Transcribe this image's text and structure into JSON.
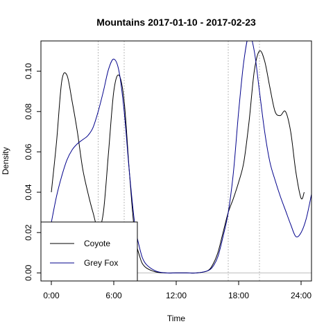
{
  "chart_data": {
    "type": "line",
    "title": "Mountains 2017-01-10 - 2017-02-23",
    "xlabel": "Time",
    "ylabel": "Density",
    "xlim": [
      -1,
      25
    ],
    "ylim": [
      -0.004,
      0.115
    ],
    "x_ticks": [
      {
        "value": 0,
        "label": "0:00"
      },
      {
        "value": 6,
        "label": "6:00"
      },
      {
        "value": 12,
        "label": "12:00"
      },
      {
        "value": 18,
        "label": "18:00"
      },
      {
        "value": 24,
        "label": "24:00"
      }
    ],
    "y_ticks": [
      {
        "value": 0,
        "label": "0.00"
      },
      {
        "value": 0.02,
        "label": "0.02"
      },
      {
        "value": 0.04,
        "label": "0.04"
      },
      {
        "value": 0.06,
        "label": "0.06"
      },
      {
        "value": 0.08,
        "label": "0.08"
      },
      {
        "value": 0.1,
        "label": "0.10"
      }
    ],
    "vertical_reference_lines": [
      4.5,
      7,
      17,
      20
    ],
    "legend": {
      "position": "bottom-left",
      "entries": [
        {
          "label": "Coyote",
          "color": "#000000"
        },
        {
          "label": "Grey Fox",
          "color": "#00008B"
        }
      ]
    },
    "series": [
      {
        "name": "Coyote",
        "color": "#000000",
        "points": [
          [
            0,
            0.04
          ],
          [
            0.5,
            0.065
          ],
          [
            1.0,
            0.095
          ],
          [
            1.5,
            0.098
          ],
          [
            2.0,
            0.085
          ],
          [
            2.5,
            0.07
          ],
          [
            3.0,
            0.052
          ],
          [
            3.5,
            0.04
          ],
          [
            4.0,
            0.03
          ],
          [
            4.5,
            0.022
          ],
          [
            5.0,
            0.03
          ],
          [
            5.5,
            0.06
          ],
          [
            6.0,
            0.09
          ],
          [
            6.5,
            0.098
          ],
          [
            7.0,
            0.085
          ],
          [
            7.5,
            0.05
          ],
          [
            8.0,
            0.02
          ],
          [
            8.5,
            0.008
          ],
          [
            9.0,
            0.003
          ],
          [
            10.0,
            0.0005
          ],
          [
            11.0,
            0.0
          ],
          [
            12.0,
            0.0
          ],
          [
            13.0,
            0.0
          ],
          [
            14.0,
            0.0
          ],
          [
            15.0,
            0.001
          ],
          [
            15.5,
            0.004
          ],
          [
            16.0,
            0.01
          ],
          [
            16.5,
            0.02
          ],
          [
            17.0,
            0.03
          ],
          [
            17.5,
            0.037
          ],
          [
            18.0,
            0.045
          ],
          [
            18.5,
            0.055
          ],
          [
            19.0,
            0.075
          ],
          [
            19.5,
            0.1
          ],
          [
            20.0,
            0.11
          ],
          [
            20.5,
            0.105
          ],
          [
            21.0,
            0.092
          ],
          [
            21.5,
            0.08
          ],
          [
            22.0,
            0.078
          ],
          [
            22.5,
            0.08
          ],
          [
            23.0,
            0.07
          ],
          [
            23.5,
            0.05
          ],
          [
            24.0,
            0.037
          ],
          [
            24.3,
            0.04
          ]
        ]
      },
      {
        "name": "Grey Fox",
        "color": "#00008B",
        "points": [
          [
            0,
            0.025
          ],
          [
            0.5,
            0.038
          ],
          [
            1.0,
            0.048
          ],
          [
            1.5,
            0.056
          ],
          [
            2.0,
            0.061
          ],
          [
            2.5,
            0.064
          ],
          [
            3.0,
            0.066
          ],
          [
            3.5,
            0.068
          ],
          [
            4.0,
            0.072
          ],
          [
            4.5,
            0.08
          ],
          [
            5.0,
            0.09
          ],
          [
            5.5,
            0.101
          ],
          [
            6.0,
            0.106
          ],
          [
            6.5,
            0.1
          ],
          [
            7.0,
            0.08
          ],
          [
            7.5,
            0.05
          ],
          [
            8.0,
            0.025
          ],
          [
            8.5,
            0.012
          ],
          [
            9.0,
            0.005
          ],
          [
            10.0,
            0.001
          ],
          [
            11.0,
            0.0
          ],
          [
            12.0,
            0.0
          ],
          [
            13.0,
            0.0
          ],
          [
            14.0,
            0.0
          ],
          [
            15.0,
            0.001
          ],
          [
            15.5,
            0.003
          ],
          [
            16.0,
            0.008
          ],
          [
            16.5,
            0.018
          ],
          [
            17.0,
            0.03
          ],
          [
            17.5,
            0.05
          ],
          [
            18.0,
            0.08
          ],
          [
            18.5,
            0.105
          ],
          [
            19.0,
            0.118
          ],
          [
            19.5,
            0.11
          ],
          [
            20.0,
            0.09
          ],
          [
            20.5,
            0.07
          ],
          [
            21.0,
            0.055
          ],
          [
            21.5,
            0.046
          ],
          [
            22.0,
            0.038
          ],
          [
            22.5,
            0.031
          ],
          [
            23.0,
            0.024
          ],
          [
            23.5,
            0.018
          ],
          [
            24.0,
            0.02
          ],
          [
            24.5,
            0.027
          ],
          [
            25.0,
            0.039
          ]
        ]
      }
    ]
  }
}
